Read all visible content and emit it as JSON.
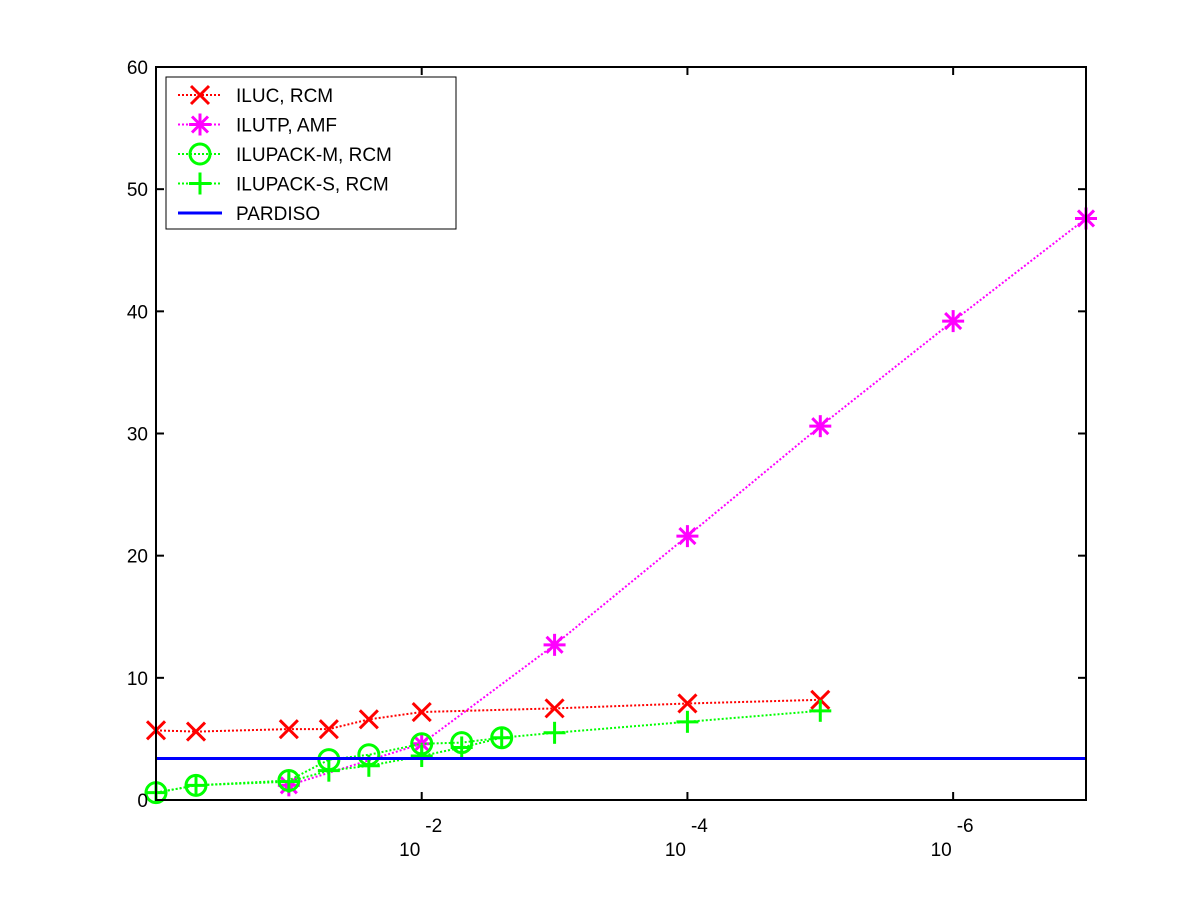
{
  "chart_data": {
    "type": "line",
    "xscale": "log",
    "x_reversed": true,
    "xlim": [
      1,
      1e-07
    ],
    "ylim": [
      0,
      60
    ],
    "xticks": [
      {
        "value": 0.01,
        "base": "10",
        "exp": "-2"
      },
      {
        "value": 0.0001,
        "base": "10",
        "exp": "-4"
      },
      {
        "value": 1e-06,
        "base": "10",
        "exp": "-6"
      }
    ],
    "yticks": [
      0,
      10,
      20,
      30,
      40,
      50,
      60
    ],
    "legend_position": "top-left",
    "series": [
      {
        "name": "ILUC, RCM",
        "color": "#ff0000",
        "marker": "x",
        "line": "dotted",
        "points": [
          {
            "x": 1,
            "y": 5.7
          },
          {
            "x": 0.5,
            "y": 5.6
          },
          {
            "x": 0.1,
            "y": 5.8
          },
          {
            "x": 0.05,
            "y": 5.8
          },
          {
            "x": 0.025,
            "y": 6.6
          },
          {
            "x": 0.01,
            "y": 7.2
          },
          {
            "x": 0.001,
            "y": 7.5
          },
          {
            "x": 0.0001,
            "y": 7.9
          },
          {
            "x": 1e-05,
            "y": 8.2
          }
        ]
      },
      {
        "name": "ILUTP, AMF",
        "color": "#ff00ff",
        "marker": "asterisk",
        "line": "dotted",
        "points": [
          {
            "x": 0.1,
            "y": 1.2
          },
          {
            "x": 0.01,
            "y": 4.6
          },
          {
            "x": 0.001,
            "y": 12.7
          },
          {
            "x": 0.0001,
            "y": 21.6
          },
          {
            "x": 1e-05,
            "y": 30.6
          },
          {
            "x": 1e-06,
            "y": 39.2
          },
          {
            "x": 1e-07,
            "y": 47.6
          }
        ]
      },
      {
        "name": "ILUPACK-M, RCM",
        "color": "#00ff00",
        "marker": "circle",
        "line": "dotted",
        "points": [
          {
            "x": 1,
            "y": 0.6
          },
          {
            "x": 0.5,
            "y": 1.2
          },
          {
            "x": 0.1,
            "y": 1.6
          },
          {
            "x": 0.05,
            "y": 3.3
          },
          {
            "x": 0.025,
            "y": 3.7
          },
          {
            "x": 0.01,
            "y": 4.6
          },
          {
            "x": 0.005,
            "y": 4.7
          },
          {
            "x": 0.0025,
            "y": 5.1
          }
        ]
      },
      {
        "name": "ILUPACK-S, RCM",
        "color": "#00ff00",
        "marker": "plus",
        "line": "dotted",
        "points": [
          {
            "x": 1,
            "y": 0.6
          },
          {
            "x": 0.5,
            "y": 1.2
          },
          {
            "x": 0.1,
            "y": 1.5
          },
          {
            "x": 0.05,
            "y": 2.4
          },
          {
            "x": 0.025,
            "y": 2.8
          },
          {
            "x": 0.01,
            "y": 3.6
          },
          {
            "x": 0.005,
            "y": 4.3
          },
          {
            "x": 0.0025,
            "y": 5.1
          },
          {
            "x": 0.001,
            "y": 5.5
          },
          {
            "x": 0.0001,
            "y": 6.4
          },
          {
            "x": 1e-05,
            "y": 7.3
          }
        ]
      },
      {
        "name": "PARDISO",
        "color": "#0000ff",
        "marker": "none",
        "line": "solid",
        "points": [
          {
            "x": 1,
            "y": 3.4
          },
          {
            "x": 1e-07,
            "y": 3.4
          }
        ]
      }
    ]
  }
}
